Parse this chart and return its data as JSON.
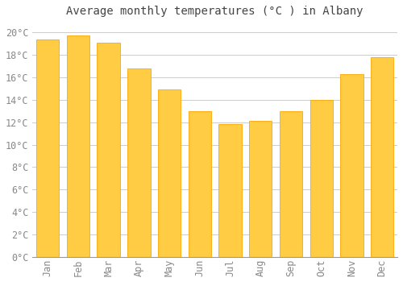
{
  "title": "Average monthly temperatures (°C ) in Albany",
  "months": [
    "Jan",
    "Feb",
    "Mar",
    "Apr",
    "May",
    "Jun",
    "Jul",
    "Aug",
    "Sep",
    "Oct",
    "Nov",
    "Dec"
  ],
  "temperatures": [
    19.4,
    19.7,
    19.1,
    16.8,
    14.9,
    13.0,
    11.8,
    12.1,
    13.0,
    14.0,
    16.3,
    17.8
  ],
  "bar_color_light": "#FFCC44",
  "bar_color_dark": "#FFA500",
  "background_color": "#FFFFFF",
  "plot_bg_color": "#FFFFFF",
  "grid_color": "#CCCCCC",
  "text_color": "#888888",
  "title_color": "#444444",
  "axis_color": "#999999",
  "ylim": [
    0,
    21
  ],
  "yticks": [
    0,
    2,
    4,
    6,
    8,
    10,
    12,
    14,
    16,
    18,
    20
  ],
  "title_fontsize": 10,
  "tick_fontsize": 8.5,
  "bar_width": 0.75
}
